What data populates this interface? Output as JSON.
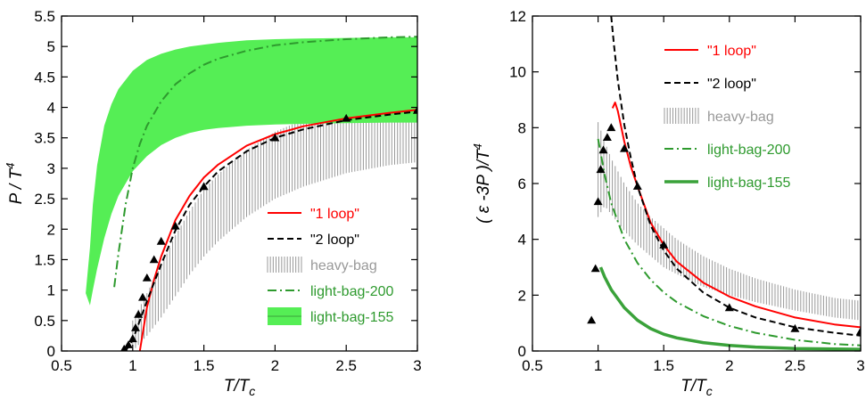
{
  "chart_data": [
    {
      "type": "line",
      "xlabel": "T/T",
      "xlabel_sub": "c",
      "ylabel": "P / T",
      "ylabel_sup": "4",
      "xlim": [
        0.5,
        3
      ],
      "ylim": [
        0,
        5.5
      ],
      "xticks": [
        "0.5",
        "1",
        "1.5",
        "2",
        "2.5",
        "3"
      ],
      "yticks": [
        "0",
        "0.5",
        "1",
        "1.5",
        "2",
        "2.5",
        "3",
        "3.5",
        "4",
        "4.5",
        "5",
        "5.5"
      ],
      "legend_position": "bottom-right",
      "legend": [
        "\"1 loop\"",
        "\"2 loop\"",
        "heavy-bag",
        "light-bag-200",
        "light-bag-155"
      ],
      "colors": {
        "one_loop": "#ff0000",
        "two_loop": "#000000",
        "heavy_bag": "#999999",
        "light_bag_200": "#2e9a2e",
        "light_bag_155": "#55ee55",
        "lattice": "#000000"
      },
      "series": [
        {
          "name": "\"1 loop\"",
          "style": "solid",
          "x": [
            1.05,
            1.1,
            1.15,
            1.2,
            1.3,
            1.4,
            1.5,
            1.6,
            1.8,
            2.0,
            2.2,
            2.5,
            2.8,
            3.0
          ],
          "y": [
            0.0,
            0.72,
            1.17,
            1.55,
            2.15,
            2.55,
            2.85,
            3.06,
            3.37,
            3.56,
            3.69,
            3.82,
            3.91,
            3.96
          ]
        },
        {
          "name": "\"2 loop\"",
          "style": "dashed",
          "x": [
            0.95,
            1.0,
            1.05,
            1.1,
            1.15,
            1.2,
            1.3,
            1.4,
            1.5,
            1.6,
            1.8,
            2.0,
            2.2,
            2.5,
            2.8,
            3.0
          ],
          "y": [
            0.0,
            0.18,
            0.5,
            0.82,
            1.12,
            1.42,
            1.98,
            2.4,
            2.7,
            2.95,
            3.28,
            3.5,
            3.64,
            3.79,
            3.88,
            3.93
          ]
        },
        {
          "name": "heavy-bag",
          "style": "band",
          "x": [
            1.0,
            1.1,
            1.2,
            1.3,
            1.4,
            1.5,
            1.6,
            1.8,
            2.0,
            2.2,
            2.5,
            2.8,
            3.0
          ],
          "y_low": [
            0.0,
            0.25,
            0.55,
            0.9,
            1.25,
            1.55,
            1.8,
            2.2,
            2.5,
            2.7,
            2.92,
            3.05,
            3.1
          ],
          "y_high": [
            0.5,
            0.95,
            1.4,
            1.9,
            2.3,
            2.65,
            2.9,
            3.3,
            3.6,
            3.8,
            4.0,
            4.2,
            4.3
          ]
        },
        {
          "name": "light-bag-200",
          "style": "dashdot",
          "x": [
            0.87,
            0.9,
            0.95,
            1.0,
            1.05,
            1.1,
            1.2,
            1.3,
            1.4,
            1.5,
            1.6,
            1.8,
            2.0,
            2.2,
            2.5,
            2.8,
            3.0
          ],
          "y": [
            1.05,
            1.6,
            2.4,
            3.0,
            3.4,
            3.7,
            4.1,
            4.38,
            4.56,
            4.7,
            4.8,
            4.93,
            5.02,
            5.07,
            5.12,
            5.15,
            5.16
          ]
        },
        {
          "name": "light-bag-155",
          "style": "band",
          "x": [
            0.67,
            0.7,
            0.72,
            0.75,
            0.8,
            0.85,
            0.9,
            1.0,
            1.1,
            1.2,
            1.3,
            1.4,
            1.5,
            1.6,
            1.8,
            2.0,
            2.2,
            2.5,
            2.8,
            3.0
          ],
          "y_low": [
            0.95,
            0.75,
            1.0,
            1.35,
            1.85,
            2.25,
            2.55,
            2.95,
            3.2,
            3.38,
            3.5,
            3.58,
            3.63,
            3.66,
            3.7,
            3.72,
            3.73,
            3.74,
            3.75,
            3.75
          ],
          "y_high": [
            0.95,
            1.7,
            2.4,
            3.05,
            3.7,
            4.05,
            4.3,
            4.6,
            4.78,
            4.88,
            4.95,
            5.0,
            5.03,
            5.06,
            5.1,
            5.12,
            5.13,
            5.14,
            5.15,
            5.15
          ]
        },
        {
          "name": "lattice",
          "style": "markers",
          "x": [
            0.94,
            0.97,
            1.0,
            1.02,
            1.04,
            1.07,
            1.1,
            1.15,
            1.2,
            1.3,
            1.5,
            2.0,
            2.5,
            3.0
          ],
          "y": [
            0.03,
            0.1,
            0.2,
            0.38,
            0.6,
            0.88,
            1.2,
            1.5,
            1.8,
            2.05,
            2.7,
            3.5,
            3.82,
            3.95
          ]
        }
      ]
    },
    {
      "type": "line",
      "xlabel": "T/T",
      "xlabel_sub": "c",
      "ylabel": "( ε -3P )/T",
      "ylabel_sup": "4",
      "xlim": [
        0.5,
        3
      ],
      "ylim": [
        0,
        12
      ],
      "xticks": [
        "0.5",
        "1",
        "1.5",
        "2",
        "2.5",
        "3"
      ],
      "yticks": [
        "0",
        "2",
        "4",
        "6",
        "8",
        "10",
        "12"
      ],
      "legend_position": "top-right",
      "legend": [
        "\"1 loop\"",
        "\"2 loop\"",
        "heavy-bag",
        "light-bag-200",
        "light-bag-155"
      ],
      "colors": {
        "one_loop": "#ff0000",
        "two_loop": "#000000",
        "heavy_bag": "#999999",
        "light_bag_200": "#2e9a2e",
        "light_bag_155": "#3aa23a",
        "lattice": "#000000"
      },
      "series": [
        {
          "name": "\"1 loop\"",
          "style": "solid",
          "x": [
            1.11,
            1.13,
            1.15,
            1.2,
            1.25,
            1.3,
            1.4,
            1.5,
            1.6,
            1.8,
            2.0,
            2.2,
            2.5,
            2.8,
            3.0
          ],
          "y": [
            8.7,
            8.9,
            8.6,
            7.5,
            6.6,
            5.9,
            4.6,
            3.8,
            3.2,
            2.45,
            1.95,
            1.6,
            1.2,
            0.95,
            0.85
          ]
        },
        {
          "name": "\"2 loop\"",
          "style": "dashed",
          "x": [
            1.1,
            1.12,
            1.15,
            1.2,
            1.25,
            1.3,
            1.4,
            1.5,
            1.6,
            1.8,
            2.0,
            2.2,
            2.5,
            2.8,
            3.0
          ],
          "y": [
            12.0,
            11.0,
            9.7,
            8.1,
            6.9,
            5.9,
            4.5,
            3.6,
            2.95,
            2.1,
            1.55,
            1.2,
            0.85,
            0.65,
            0.55
          ]
        },
        {
          "name": "heavy-bag",
          "style": "band",
          "x": [
            1.0,
            1.05,
            1.1,
            1.2,
            1.3,
            1.4,
            1.5,
            1.6,
            1.8,
            2.0,
            2.2,
            2.5,
            2.8,
            3.0
          ],
          "y_low": [
            4.8,
            5.2,
            4.9,
            4.3,
            3.8,
            3.4,
            3.0,
            2.75,
            2.3,
            2.0,
            1.75,
            1.45,
            1.2,
            1.1
          ],
          "y_high": [
            8.2,
            7.5,
            6.9,
            6.0,
            5.3,
            4.8,
            4.4,
            4.0,
            3.4,
            2.95,
            2.6,
            2.2,
            1.9,
            1.8
          ]
        },
        {
          "name": "light-bag-200",
          "style": "dashdot",
          "x": [
            1.0,
            1.05,
            1.1,
            1.2,
            1.3,
            1.4,
            1.5,
            1.6,
            1.8,
            2.0,
            2.2,
            2.5,
            2.8,
            3.0
          ],
          "y": [
            7.6,
            6.3,
            5.3,
            4.0,
            3.15,
            2.55,
            2.1,
            1.75,
            1.25,
            0.9,
            0.65,
            0.4,
            0.25,
            0.2
          ]
        },
        {
          "name": "light-bag-155",
          "style": "thick",
          "x": [
            1.02,
            1.05,
            1.1,
            1.2,
            1.3,
            1.4,
            1.5,
            1.6,
            1.8,
            2.0,
            2.2,
            2.5,
            2.8,
            3.0
          ],
          "y": [
            3.0,
            2.65,
            2.2,
            1.55,
            1.1,
            0.8,
            0.6,
            0.47,
            0.3,
            0.2,
            0.14,
            0.09,
            0.07,
            0.06
          ]
        },
        {
          "name": "lattice",
          "style": "markers",
          "x": [
            0.95,
            0.98,
            1.0,
            1.02,
            1.04,
            1.07,
            1.1,
            1.2,
            1.3,
            1.5,
            2.0,
            2.5,
            3.0
          ],
          "y": [
            1.1,
            2.95,
            5.35,
            6.5,
            7.2,
            7.65,
            8.0,
            7.25,
            5.9,
            3.8,
            1.55,
            0.8,
            0.7
          ]
        }
      ]
    }
  ]
}
